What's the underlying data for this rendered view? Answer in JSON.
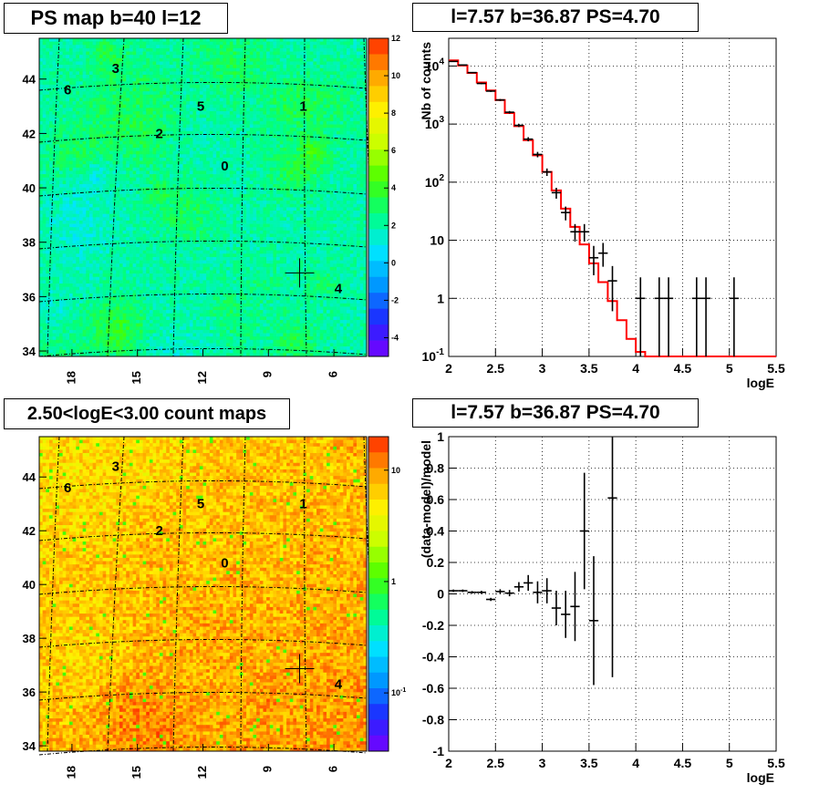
{
  "titles": {
    "ps_map": "PS map b=40 l=12",
    "spectrum": "l=7.57 b=36.87 PS=4.70",
    "count_map": "2.50<logE<3.00 count maps",
    "residual": "l=7.57 b=36.87 PS=4.70"
  },
  "colors": {
    "model_line": "#ff0000",
    "data_points": "#000000",
    "map_grid": "#000000"
  },
  "chart_data": [
    {
      "type": "heatmap",
      "name": "ps-map",
      "title": "PS map b=40 l=12",
      "x_ticks": [
        "18",
        "15",
        "12",
        "9",
        "6"
      ],
      "y_ticks": [
        "34",
        "36",
        "38",
        "40",
        "42",
        "44"
      ],
      "xlim": [
        19.5,
        4.5
      ],
      "ylim": [
        33.8,
        45.5
      ],
      "colorbar": {
        "min": -5,
        "max": 12,
        "ticks": [
          "12",
          "10",
          "8",
          "6",
          "4",
          "2",
          "0",
          "-2",
          "-4"
        ]
      },
      "sources": [
        {
          "label": "3",
          "l": 16.0,
          "b": 44.4
        },
        {
          "label": "6",
          "l": 18.2,
          "b": 43.6
        },
        {
          "label": "5",
          "l": 12.1,
          "b": 43.0
        },
        {
          "label": "1",
          "l": 7.4,
          "b": 43.0
        },
        {
          "label": "2",
          "l": 14.0,
          "b": 42.0
        },
        {
          "label": "0",
          "l": 11.0,
          "b": 40.8
        },
        {
          "label": "4",
          "l": 5.8,
          "b": 36.3
        }
      ],
      "marker": {
        "l": 7.57,
        "b": 36.87
      }
    },
    {
      "type": "line",
      "name": "energy-spectrum",
      "title": "l=7.57 b=36.87 PS=4.70",
      "xlabel": "logE",
      "ylabel": "Nb of counts",
      "xlim": [
        2,
        5.5
      ],
      "ylim": [
        0.1,
        30000
      ],
      "yscale": "log",
      "x_ticks": [
        "2",
        "2.5",
        "3",
        "3.5",
        "4",
        "4.5",
        "5",
        "5.5"
      ],
      "y_ticks": [
        "10^-1",
        "1",
        "10",
        "10^2",
        "10^3",
        "10^4"
      ],
      "grid": true,
      "bin_width": 0.1,
      "model_bins": {
        "x_start": [
          2.0,
          2.1,
          2.2,
          2.3,
          2.4,
          2.5,
          2.6,
          2.7,
          2.8,
          2.9,
          3.0,
          3.1,
          3.2,
          3.3,
          3.4,
          3.5,
          3.6,
          3.7,
          3.8,
          3.9,
          4.0,
          4.1,
          4.2,
          4.3,
          4.4,
          4.5,
          4.6,
          4.7,
          4.8,
          4.9,
          5.0,
          5.1,
          5.2,
          5.3,
          5.4
        ],
        "y": [
          12500,
          10200,
          7600,
          5200,
          3800,
          2600,
          1550,
          920,
          530,
          290,
          150,
          72,
          35,
          17,
          8.5,
          4.0,
          1.9,
          0.9,
          0.42,
          0.2,
          0.12,
          0.1,
          0.1,
          0.1,
          0.1,
          0.1,
          0.1,
          0.1,
          0.1,
          0.1,
          0.1,
          0.1,
          0.1,
          0.1,
          0.1
        ]
      },
      "data_points": [
        {
          "x": 2.05,
          "y": 12000,
          "err_lo": 11780,
          "err_hi": 12220
        },
        {
          "x": 2.15,
          "y": 10400,
          "err_lo": 10200,
          "err_hi": 10600
        },
        {
          "x": 2.25,
          "y": 7700,
          "err_lo": 7520,
          "err_hi": 7880
        },
        {
          "x": 2.35,
          "y": 5000,
          "err_lo": 4860,
          "err_hi": 5140
        },
        {
          "x": 2.45,
          "y": 3700,
          "err_lo": 3580,
          "err_hi": 3820
        },
        {
          "x": 2.55,
          "y": 2600,
          "err_lo": 2500,
          "err_hi": 2700
        },
        {
          "x": 2.65,
          "y": 1600,
          "err_lo": 1520,
          "err_hi": 1680
        },
        {
          "x": 2.75,
          "y": 950,
          "err_lo": 890,
          "err_hi": 1010
        },
        {
          "x": 2.85,
          "y": 550,
          "err_lo": 505,
          "err_hi": 595
        },
        {
          "x": 2.95,
          "y": 300,
          "err_lo": 268,
          "err_hi": 332
        },
        {
          "x": 3.05,
          "y": 150,
          "err_lo": 128,
          "err_hi": 172
        },
        {
          "x": 3.15,
          "y": 66,
          "err_lo": 52,
          "err_hi": 80
        },
        {
          "x": 3.25,
          "y": 30,
          "err_lo": 22,
          "err_hi": 38
        },
        {
          "x": 3.35,
          "y": 14,
          "err_lo": 9.5,
          "err_hi": 19
        },
        {
          "x": 3.45,
          "y": 14,
          "err_lo": 9.5,
          "err_hi": 19
        },
        {
          "x": 3.55,
          "y": 5,
          "err_lo": 2.5,
          "err_hi": 8
        },
        {
          "x": 3.65,
          "y": 6,
          "err_lo": 3.5,
          "err_hi": 9
        },
        {
          "x": 3.75,
          "y": 2,
          "err_lo": 0.6,
          "err_hi": 3.6
        },
        {
          "x": 4.05,
          "y": 1,
          "err_lo": 0.1,
          "err_hi": 2.3
        },
        {
          "x": 4.25,
          "y": 1,
          "err_lo": 0.1,
          "err_hi": 2.3
        },
        {
          "x": 4.35,
          "y": 1,
          "err_lo": 0.1,
          "err_hi": 2.3
        },
        {
          "x": 4.65,
          "y": 1,
          "err_lo": 0.1,
          "err_hi": 2.3
        },
        {
          "x": 4.75,
          "y": 1,
          "err_lo": 0.1,
          "err_hi": 2.3
        },
        {
          "x": 5.05,
          "y": 1,
          "err_lo": 0.1,
          "err_hi": 2.3
        }
      ]
    },
    {
      "type": "heatmap",
      "name": "count-map",
      "title": "2.50<logE<3.00 count maps",
      "x_ticks": [
        "18",
        "15",
        "12",
        "9",
        "6"
      ],
      "y_ticks": [
        "34",
        "36",
        "38",
        "40",
        "42",
        "44"
      ],
      "xlim": [
        19.5,
        4.5
      ],
      "ylim": [
        33.8,
        45.5
      ],
      "colorbar": {
        "scale": "log",
        "min": 0.03,
        "max": 20,
        "ticks": [
          "10",
          "1",
          "10^-1"
        ]
      },
      "sources": [
        {
          "label": "3",
          "l": 16.0,
          "b": 44.4
        },
        {
          "label": "6",
          "l": 18.2,
          "b": 43.6
        },
        {
          "label": "5",
          "l": 12.1,
          "b": 43.0
        },
        {
          "label": "1",
          "l": 7.4,
          "b": 43.0
        },
        {
          "label": "2",
          "l": 14.0,
          "b": 42.0
        },
        {
          "label": "0",
          "l": 11.0,
          "b": 40.8
        },
        {
          "label": "4",
          "l": 5.8,
          "b": 36.3
        }
      ],
      "marker": {
        "l": 7.57,
        "b": 36.87
      }
    },
    {
      "type": "scatter",
      "name": "residuals",
      "title": "l=7.57 b=36.87 PS=4.70",
      "xlabel": "logE",
      "ylabel": "(data-model)/model",
      "xlim": [
        2,
        5.5
      ],
      "ylim": [
        -1,
        1
      ],
      "x_ticks": [
        "2",
        "2.5",
        "3",
        "3.5",
        "4",
        "4.5",
        "5",
        "5.5"
      ],
      "y_ticks": [
        "-1",
        "-0.8",
        "-0.6",
        "-0.4",
        "-0.2",
        "0",
        "0.2",
        "0.4",
        "0.6",
        "0.8",
        "1"
      ],
      "grid": true,
      "bin_width": 0.1,
      "points": [
        {
          "x": 2.05,
          "y": 0.02,
          "err": 0.008
        },
        {
          "x": 2.15,
          "y": 0.02,
          "err": 0.008
        },
        {
          "x": 2.25,
          "y": 0.01,
          "err": 0.008
        },
        {
          "x": 2.35,
          "y": 0.01,
          "err": 0.01
        },
        {
          "x": 2.45,
          "y": -0.035,
          "err": 0.01
        },
        {
          "x": 2.55,
          "y": 0.015,
          "err": 0.015
        },
        {
          "x": 2.65,
          "y": 0.005,
          "err": 0.02
        },
        {
          "x": 2.75,
          "y": 0.045,
          "err": 0.03
        },
        {
          "x": 2.85,
          "y": 0.07,
          "err": 0.05
        },
        {
          "x": 2.95,
          "y": 0.01,
          "err": 0.07
        },
        {
          "x": 3.05,
          "y": 0.02,
          "err": 0.08
        },
        {
          "x": 3.15,
          "y": -0.09,
          "err": 0.11
        },
        {
          "x": 3.25,
          "y": -0.13,
          "err": 0.15
        },
        {
          "x": 3.35,
          "y": -0.08,
          "err": 0.22
        },
        {
          "x": 3.45,
          "y": 0.4,
          "err": 0.37
        },
        {
          "x": 3.55,
          "y": -0.17,
          "err": 0.41
        },
        {
          "x": 3.75,
          "y": 0.61,
          "err": 1.14
        }
      ]
    }
  ]
}
